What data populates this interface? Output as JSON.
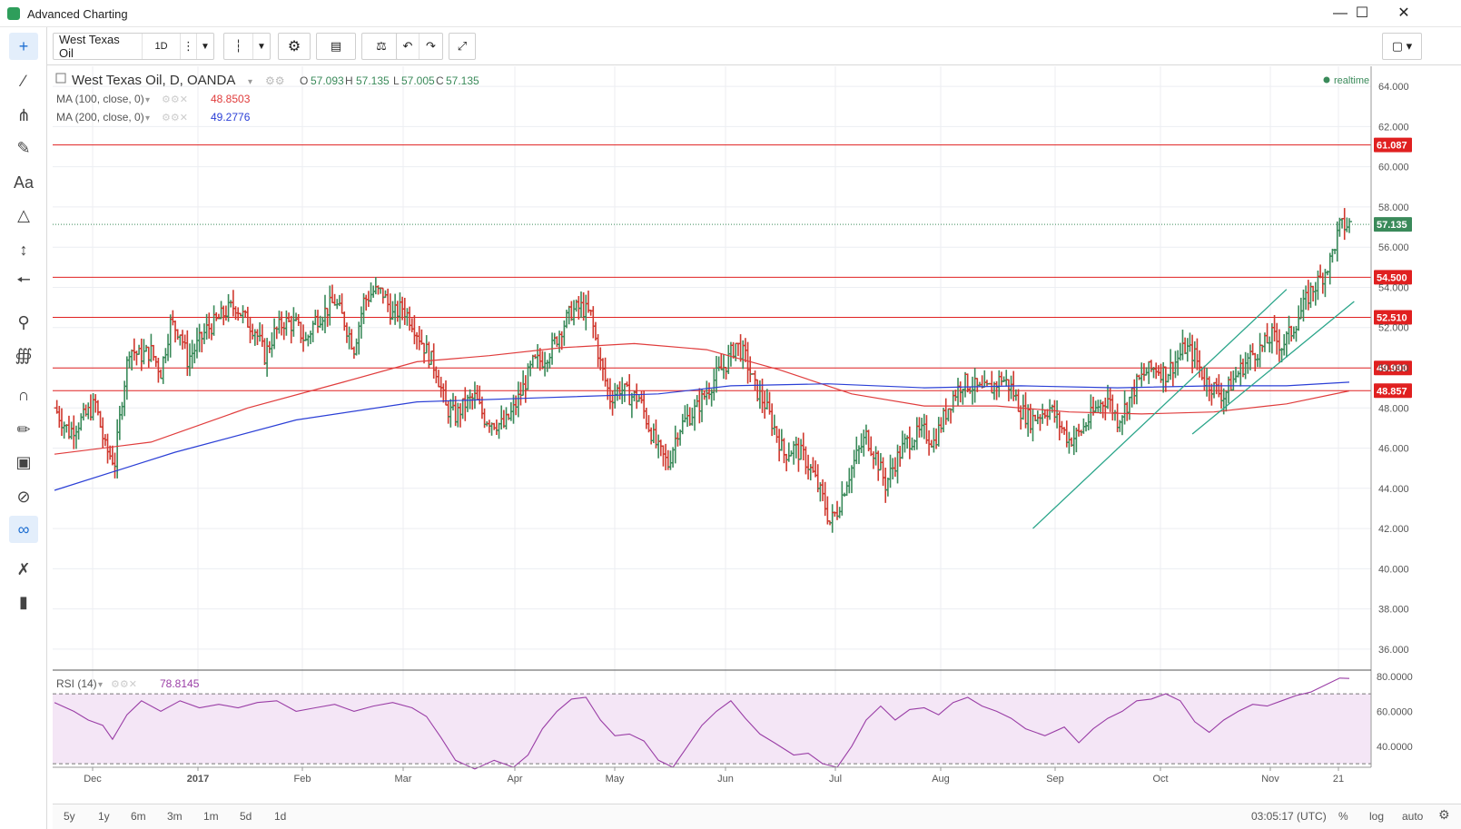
{
  "window": {
    "title": "Advanced Charting",
    "minimize_icon": "minimize-icon",
    "maximize_icon": "maximize-icon",
    "close_icon": "close-icon"
  },
  "left_toolbar": {
    "tools": [
      "crosshair-icon",
      "trend-line-icon",
      "pitchfork-icon",
      "brush-icon",
      "text-tool-icon",
      "pattern-icon",
      "measure-icon",
      "arrow-left-icon",
      "zoom-icon",
      "indicator-icon",
      "magnet-icon",
      "pencil-lock-icon",
      "lock-icon",
      "eye-off-icon",
      "link-icon",
      "settings-tools-icon",
      "trash-icon"
    ],
    "text_tool_label": "Aa"
  },
  "top_toolbar": {
    "symbol": "West Texas Oil",
    "interval": "1D"
  },
  "legend": {
    "main": "West Texas Oil, D, OANDA",
    "o_label": "O",
    "o_value": "57.093",
    "h_label": "H",
    "h_value": "57.135",
    "l_label": "L",
    "l_value": "57.005",
    "c_label": "C",
    "c_value": "57.135",
    "ma100_label": "MA (100, close, 0)",
    "ma100_value": "48.8503",
    "ma200_label": "MA (200, close, 0)",
    "ma200_value": "49.2776",
    "realtime": "realtime"
  },
  "rsi_legend": {
    "label": "RSI (14)",
    "value": "78.8145"
  },
  "colors": {
    "up": "#3a8a5a",
    "down": "#d0382e",
    "hline": "#e02020",
    "ma100": "#e03c3c",
    "ma200": "#2b3fd6",
    "rsi": "#9a3ea6",
    "trend": "#2aa58a"
  },
  "chart_data": {
    "type": "ohlc",
    "price_axis": {
      "range": [
        35,
        65
      ],
      "ticks": [
        "64.000",
        "62.000",
        "60.000",
        "58.000",
        "56.000",
        "54.000",
        "52.000",
        "50.000",
        "48.000",
        "46.000",
        "44.000",
        "42.000",
        "40.000",
        "38.000",
        "36.000"
      ]
    },
    "time_axis": {
      "labels": [
        "Dec",
        "2017",
        "Feb",
        "Mar",
        "Apr",
        "May",
        "Jun",
        "Jul",
        "Aug",
        "Sep",
        "Oct",
        "Nov",
        "21"
      ]
    },
    "price_levels": [
      {
        "value": 61.087,
        "label": "61.087"
      },
      {
        "value": 54.5,
        "label": "54.500"
      },
      {
        "value": 52.51,
        "label": "52.510"
      },
      {
        "value": 49.99,
        "label": "49.990"
      },
      {
        "value": 48.857,
        "label": "48.857"
      }
    ],
    "last_price": {
      "value": 57.135,
      "label": "57.135"
    },
    "close_path": [
      [
        0,
        48.0
      ],
      [
        6,
        46.8
      ],
      [
        12,
        47.5
      ],
      [
        17,
        48.2
      ],
      [
        21,
        46.0
      ],
      [
        25,
        45.3
      ],
      [
        28,
        48.5
      ],
      [
        31,
        51.0
      ],
      [
        35,
        50.6
      ],
      [
        40,
        50.8
      ],
      [
        44,
        49.8
      ],
      [
        48,
        52.2
      ],
      [
        52,
        51.8
      ],
      [
        55,
        50.4
      ],
      [
        59,
        51.1
      ],
      [
        63,
        51.9
      ],
      [
        67,
        52.3
      ],
      [
        71,
        52.8
      ],
      [
        75,
        53.1
      ],
      [
        79,
        52.4
      ],
      [
        83,
        51.9
      ],
      [
        87,
        50.6
      ],
      [
        91,
        51.7
      ],
      [
        95,
        52.3
      ],
      [
        100,
        52.1
      ],
      [
        104,
        51.3
      ],
      [
        108,
        52.4
      ],
      [
        112,
        52.8
      ],
      [
        116,
        53.3
      ],
      [
        120,
        52.3
      ],
      [
        124,
        51.0
      ],
      [
        128,
        53.3
      ],
      [
        132,
        53.8
      ],
      [
        136,
        53.7
      ],
      [
        140,
        52.6
      ],
      [
        144,
        53.0
      ],
      [
        148,
        52.3
      ],
      [
        152,
        51.3
      ],
      [
        158,
        49.9
      ],
      [
        162,
        48.0
      ],
      [
        166,
        47.6
      ],
      [
        170,
        48.2
      ],
      [
        174,
        48.5
      ],
      [
        178,
        47.5
      ],
      [
        182,
        47.3
      ],
      [
        186,
        47.1
      ],
      [
        190,
        47.9
      ],
      [
        194,
        49.0
      ],
      [
        198,
        50.2
      ],
      [
        202,
        50.4
      ],
      [
        206,
        51.0
      ],
      [
        210,
        52.0
      ],
      [
        214,
        52.8
      ],
      [
        218,
        53.0
      ],
      [
        222,
        52.6
      ],
      [
        226,
        50.2
      ],
      [
        230,
        48.5
      ],
      [
        234,
        49.0
      ],
      [
        238,
        48.6
      ],
      [
        242,
        48.5
      ],
      [
        246,
        47.1
      ],
      [
        250,
        45.9
      ],
      [
        254,
        45.2
      ],
      [
        258,
        46.9
      ],
      [
        262,
        47.5
      ],
      [
        266,
        48.0
      ],
      [
        270,
        48.8
      ],
      [
        274,
        49.6
      ],
      [
        278,
        50.2
      ],
      [
        282,
        51.2
      ],
      [
        286,
        50.5
      ],
      [
        290,
        49.0
      ],
      [
        294,
        48.2
      ],
      [
        298,
        47.0
      ],
      [
        302,
        45.7
      ],
      [
        306,
        46.0
      ],
      [
        310,
        45.6
      ],
      [
        314,
        44.7
      ],
      [
        318,
        43.5
      ],
      [
        321,
        42.3
      ],
      [
        324,
        42.9
      ],
      [
        328,
        44.4
      ],
      [
        332,
        45.6
      ],
      [
        336,
        46.6
      ],
      [
        340,
        45.6
      ],
      [
        344,
        44.2
      ],
      [
        348,
        45.3
      ],
      [
        352,
        46.2
      ],
      [
        356,
        46.6
      ],
      [
        360,
        46.8
      ],
      [
        364,
        46.3
      ],
      [
        368,
        47.5
      ],
      [
        372,
        48.6
      ],
      [
        376,
        49.3
      ],
      [
        380,
        49.1
      ],
      [
        384,
        48.8
      ],
      [
        388,
        49.0
      ],
      [
        392,
        49.5
      ],
      [
        396,
        49.0
      ],
      [
        400,
        47.9
      ],
      [
        404,
        47.4
      ],
      [
        408,
        47.7
      ],
      [
        412,
        48.0
      ],
      [
        416,
        47.2
      ],
      [
        420,
        46.4
      ],
      [
        424,
        46.7
      ],
      [
        428,
        47.4
      ],
      [
        432,
        48.1
      ],
      [
        436,
        48.5
      ],
      [
        440,
        47.4
      ],
      [
        444,
        48.2
      ],
      [
        448,
        49.2
      ],
      [
        452,
        49.8
      ],
      [
        456,
        50.0
      ],
      [
        460,
        49.7
      ],
      [
        464,
        50.3
      ],
      [
        468,
        51.0
      ],
      [
        472,
        50.6
      ],
      [
        476,
        49.4
      ],
      [
        480,
        49.0
      ],
      [
        484,
        48.6
      ],
      [
        488,
        49.4
      ],
      [
        492,
        50.1
      ],
      [
        496,
        50.7
      ],
      [
        500,
        51.0
      ],
      [
        504,
        51.6
      ],
      [
        508,
        51.1
      ],
      [
        512,
        51.8
      ],
      [
        516,
        52.8
      ],
      [
        520,
        53.8
      ],
      [
        524,
        54.4
      ],
      [
        528,
        55.3
      ],
      [
        532,
        57.0
      ],
      [
        536,
        57.135
      ]
    ],
    "ma100_path": [
      [
        0,
        45.7
      ],
      [
        40,
        46.3
      ],
      [
        80,
        48.0
      ],
      [
        120,
        49.3
      ],
      [
        150,
        50.3
      ],
      [
        180,
        50.6
      ],
      [
        210,
        51.0
      ],
      [
        240,
        51.2
      ],
      [
        270,
        50.9
      ],
      [
        300,
        49.9
      ],
      [
        330,
        48.7
      ],
      [
        360,
        48.1
      ],
      [
        390,
        48.1
      ],
      [
        420,
        47.8
      ],
      [
        450,
        47.7
      ],
      [
        480,
        47.8
      ],
      [
        510,
        48.2
      ],
      [
        536,
        48.85
      ]
    ],
    "ma200_path": [
      [
        0,
        43.9
      ],
      [
        50,
        45.8
      ],
      [
        100,
        47.4
      ],
      [
        150,
        48.3
      ],
      [
        200,
        48.5
      ],
      [
        250,
        48.7
      ],
      [
        280,
        49.1
      ],
      [
        320,
        49.2
      ],
      [
        360,
        49.0
      ],
      [
        400,
        49.1
      ],
      [
        440,
        49.0
      ],
      [
        480,
        49.1
      ],
      [
        510,
        49.1
      ],
      [
        536,
        49.28
      ]
    ],
    "trend_lines": [
      {
        "from": [
          405,
          42.0
        ],
        "to": [
          510,
          53.9
        ]
      },
      {
        "from": [
          471,
          46.7
        ],
        "to": [
          538,
          53.3
        ]
      }
    ],
    "rsi": {
      "levels": [
        "80.0000",
        "60.0000",
        "40.0000"
      ],
      "range": [
        28,
        82
      ],
      "overbought": 70,
      "oversold": 30,
      "path": [
        [
          0,
          65
        ],
        [
          8,
          60
        ],
        [
          14,
          55
        ],
        [
          20,
          52
        ],
        [
          24,
          44
        ],
        [
          30,
          58
        ],
        [
          36,
          66
        ],
        [
          44,
          60
        ],
        [
          52,
          66
        ],
        [
          60,
          62
        ],
        [
          68,
          64
        ],
        [
          76,
          62
        ],
        [
          84,
          65
        ],
        [
          92,
          66
        ],
        [
          100,
          60
        ],
        [
          108,
          62
        ],
        [
          116,
          64
        ],
        [
          124,
          60
        ],
        [
          132,
          63
        ],
        [
          140,
          65
        ],
        [
          148,
          62
        ],
        [
          154,
          57
        ],
        [
          160,
          45
        ],
        [
          166,
          32
        ],
        [
          174,
          27
        ],
        [
          182,
          32
        ],
        [
          190,
          28
        ],
        [
          196,
          35
        ],
        [
          202,
          50
        ],
        [
          208,
          60
        ],
        [
          214,
          67
        ],
        [
          220,
          68
        ],
        [
          226,
          55
        ],
        [
          232,
          46
        ],
        [
          238,
          47
        ],
        [
          244,
          43
        ],
        [
          250,
          32
        ],
        [
          256,
          28
        ],
        [
          262,
          40
        ],
        [
          268,
          52
        ],
        [
          274,
          60
        ],
        [
          280,
          66
        ],
        [
          286,
          56
        ],
        [
          292,
          47
        ],
        [
          298,
          42
        ],
        [
          306,
          35
        ],
        [
          312,
          36
        ],
        [
          318,
          30
        ],
        [
          324,
          28
        ],
        [
          330,
          40
        ],
        [
          336,
          55
        ],
        [
          342,
          63
        ],
        [
          348,
          55
        ],
        [
          354,
          61
        ],
        [
          360,
          62
        ],
        [
          366,
          58
        ],
        [
          372,
          65
        ],
        [
          378,
          68
        ],
        [
          384,
          63
        ],
        [
          390,
          60
        ],
        [
          396,
          56
        ],
        [
          402,
          50
        ],
        [
          410,
          46
        ],
        [
          418,
          51
        ],
        [
          424,
          42
        ],
        [
          430,
          50
        ],
        [
          436,
          56
        ],
        [
          442,
          60
        ],
        [
          448,
          66
        ],
        [
          454,
          67
        ],
        [
          460,
          70
        ],
        [
          466,
          66
        ],
        [
          472,
          54
        ],
        [
          478,
          48
        ],
        [
          484,
          55
        ],
        [
          490,
          60
        ],
        [
          496,
          64
        ],
        [
          502,
          63
        ],
        [
          508,
          66
        ],
        [
          514,
          69
        ],
        [
          520,
          71
        ],
        [
          526,
          75
        ],
        [
          532,
          79
        ],
        [
          536,
          78.8
        ]
      ]
    }
  },
  "bottom_bar": {
    "ranges": [
      "5y",
      "1y",
      "6m",
      "3m",
      "1m",
      "5d",
      "1d"
    ],
    "time": "03:05:17 (UTC)",
    "percent": "%",
    "log": "log",
    "auto": "auto"
  }
}
